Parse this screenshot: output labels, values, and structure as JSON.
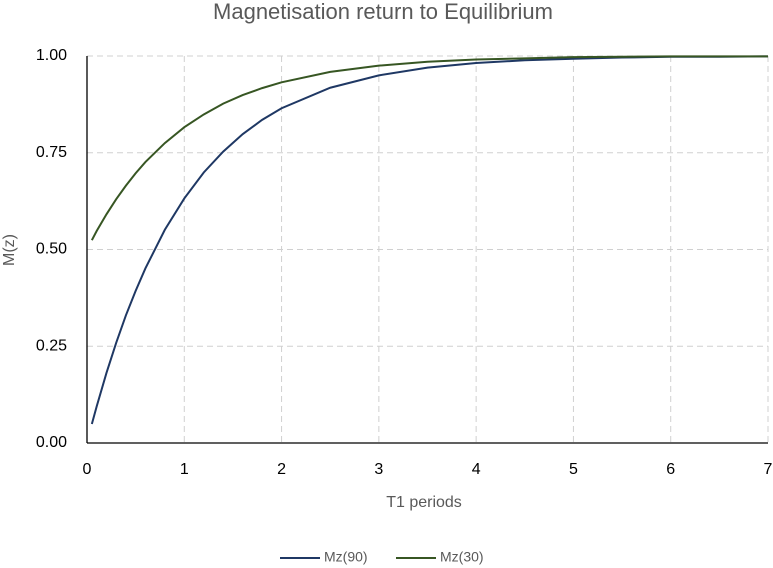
{
  "chart_data": {
    "type": "line",
    "title": "Magnetisation return to Equilibrium",
    "x_label": "T1 periods",
    "y_label": "M(z)",
    "x": [
      0.05,
      0.1,
      0.2,
      0.3,
      0.4,
      0.5,
      0.6,
      0.8,
      1,
      1.2,
      1.4,
      1.6,
      1.8,
      2,
      2.5,
      3,
      3.5,
      4,
      4.5,
      5,
      5.5,
      6,
      6.5,
      7
    ],
    "series": [
      {
        "name": "Mz(90)",
        "color": "#1f3864",
        "values": [
          0.049,
          0.095,
          0.181,
          0.259,
          0.33,
          0.393,
          0.451,
          0.551,
          0.632,
          0.699,
          0.753,
          0.798,
          0.835,
          0.865,
          0.918,
          0.95,
          0.97,
          0.982,
          0.989,
          0.993,
          0.996,
          0.998,
          0.998,
          0.999
        ]
      },
      {
        "name": "Mz(30)",
        "color": "#375623",
        "values": [
          0.524,
          0.548,
          0.591,
          0.63,
          0.665,
          0.697,
          0.726,
          0.775,
          0.816,
          0.849,
          0.877,
          0.899,
          0.917,
          0.932,
          0.959,
          0.975,
          0.985,
          0.991,
          0.994,
          0.997,
          0.998,
          0.999,
          0.999,
          0.999
        ]
      }
    ],
    "xlim": [
      0,
      7
    ],
    "xticks": [
      0,
      1,
      2,
      3,
      4,
      5,
      6,
      7
    ],
    "ylim": [
      0,
      1
    ],
    "yticks": [
      {
        "value": 0,
        "label": "0.00"
      },
      {
        "value": 0.25,
        "label": "0.25"
      },
      {
        "value": 0.5,
        "label": "0.50"
      },
      {
        "value": 0.75,
        "label": "0.75"
      },
      {
        "value": 1,
        "label": "1.00"
      }
    ],
    "grid": true,
    "legend": "bottom"
  }
}
